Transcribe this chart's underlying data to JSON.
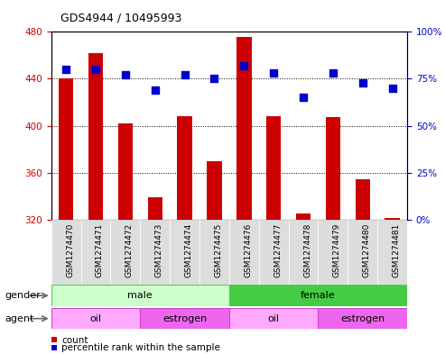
{
  "title": "GDS4944 / 10495993",
  "samples": [
    "GSM1274470",
    "GSM1274471",
    "GSM1274472",
    "GSM1274473",
    "GSM1274474",
    "GSM1274475",
    "GSM1274476",
    "GSM1274477",
    "GSM1274478",
    "GSM1274479",
    "GSM1274480",
    "GSM1274481"
  ],
  "counts": [
    440,
    462,
    402,
    339,
    408,
    370,
    476,
    408,
    325,
    407,
    354,
    321
  ],
  "percentile_ranks": [
    80,
    80,
    77,
    69,
    77,
    75,
    82,
    78,
    65,
    78,
    73,
    70
  ],
  "ylim_left": [
    320,
    480
  ],
  "ylim_right": [
    0,
    100
  ],
  "yticks_left": [
    320,
    360,
    400,
    440,
    480
  ],
  "yticks_right": [
    0,
    25,
    50,
    75,
    100
  ],
  "bar_color": "#cc0000",
  "dot_color": "#0000cc",
  "gender_groups": [
    {
      "label": "male",
      "start": 0,
      "end": 6,
      "color": "#ccffcc",
      "border_color": "#55cc55"
    },
    {
      "label": "female",
      "start": 6,
      "end": 12,
      "color": "#44cc44",
      "border_color": "#55cc55"
    }
  ],
  "agent_groups": [
    {
      "label": "oil",
      "start": 0,
      "end": 3,
      "color": "#ffaaff",
      "border_color": "#cc44cc"
    },
    {
      "label": "estrogen",
      "start": 3,
      "end": 6,
      "color": "#ee66ee",
      "border_color": "#cc44cc"
    },
    {
      "label": "oil",
      "start": 6,
      "end": 9,
      "color": "#ffaaff",
      "border_color": "#cc44cc"
    },
    {
      "label": "estrogen",
      "start": 9,
      "end": 12,
      "color": "#ee66ee",
      "border_color": "#cc44cc"
    }
  ],
  "gender_label": "gender",
  "agent_label": "agent",
  "legend_count_label": "count",
  "legend_pct_label": "percentile rank within the sample",
  "grid_color": "black",
  "left_axis_color": "#cc0000",
  "right_axis_color": "#0000cc",
  "bar_width": 0.5,
  "dot_size": 35,
  "tick_label_bg": "#dddddd",
  "fig_bg": "#ffffff"
}
